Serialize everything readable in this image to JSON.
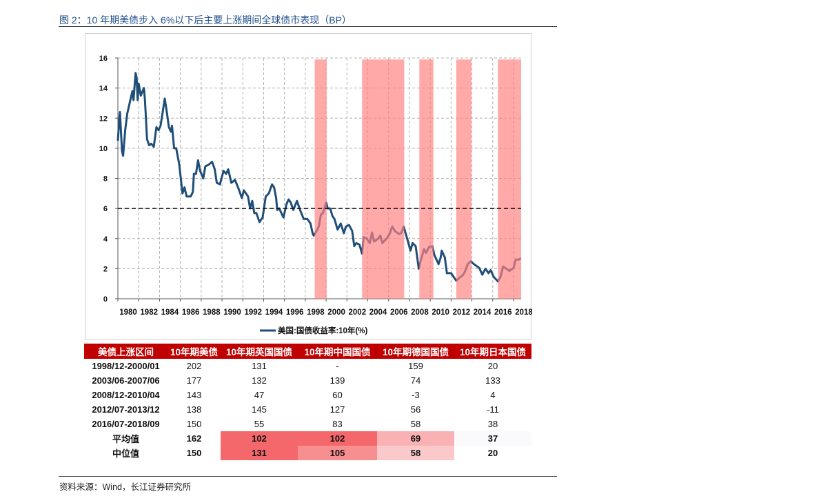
{
  "title": "图 2：10 年期美债步入 6%以下后主要上涨期间全球债市表现（BP）",
  "source": "资料来源：Wind，长江证券研究所",
  "chart_data": {
    "type": "line",
    "title": "",
    "xlabel": "",
    "ylabel": "",
    "xlim": [
      1980,
      2019
    ],
    "ylim": [
      0,
      16
    ],
    "yticks": [
      0,
      2,
      4,
      6,
      8,
      10,
      12,
      14,
      16
    ],
    "xticks": [
      1980,
      1982,
      1984,
      1986,
      1988,
      1990,
      1992,
      1994,
      1996,
      1998,
      2000,
      2002,
      2004,
      2006,
      2008,
      2010,
      2012,
      2014,
      2016,
      2018
    ],
    "grid": true,
    "legend": {
      "position": "bottom",
      "entries": [
        "美国:国债收益率:10年(%)"
      ]
    },
    "reference_line": {
      "y": 6,
      "style": "dashed"
    },
    "shaded_periods": [
      [
        1998.9,
        2000.05
      ],
      [
        2003.45,
        2007.5
      ],
      [
        2008.95,
        2010.3
      ],
      [
        2012.5,
        2013.95
      ],
      [
        2016.5,
        2018.9
      ]
    ],
    "series": [
      {
        "name": "美国:国债收益率:10年(%)",
        "color": "#1f4e79",
        "x": [
          1980.0,
          1980.15,
          1980.2,
          1980.4,
          1980.5,
          1980.7,
          1980.9,
          1981.1,
          1981.4,
          1981.5,
          1981.7,
          1981.8,
          1981.9,
          1982.0,
          1982.2,
          1982.5,
          1982.6,
          1982.8,
          1983.0,
          1983.2,
          1983.45,
          1983.7,
          1983.9,
          1984.1,
          1984.3,
          1984.5,
          1984.7,
          1984.9,
          1985.1,
          1985.2,
          1985.4,
          1985.6,
          1985.9,
          1986.2,
          1986.4,
          1986.6,
          1987.0,
          1987.2,
          1987.3,
          1987.5,
          1987.7,
          1987.9,
          1988.2,
          1988.4,
          1988.7,
          1989.05,
          1989.3,
          1989.5,
          1989.8,
          1990.15,
          1990.4,
          1990.6,
          1990.9,
          1991.25,
          1991.6,
          1991.9,
          1992.1,
          1992.5,
          1992.7,
          1992.9,
          1993.1,
          1993.3,
          1993.6,
          1993.9,
          1994.2,
          1994.5,
          1994.8,
          1995.0,
          1995.2,
          1995.3,
          1995.5,
          1995.9,
          1996.2,
          1996.4,
          1996.6,
          1996.85,
          1997.2,
          1997.5,
          1997.85,
          1998.2,
          1998.5,
          1998.7,
          1998.8,
          1999.0,
          1999.3,
          1999.5,
          1999.7,
          2000.0,
          2000.15,
          2000.4,
          2000.6,
          2000.8,
          2001.1,
          2001.4,
          2001.7,
          2001.9,
          2002.2,
          2002.5,
          2002.7,
          2002.9,
          2003.2,
          2003.45,
          2003.6,
          2003.9,
          2004.2,
          2004.4,
          2004.6,
          2005.0,
          2005.2,
          2005.4,
          2005.8,
          2006.1,
          2006.35,
          2006.6,
          2007.0,
          2007.2,
          2007.45,
          2007.7,
          2008.1,
          2008.3,
          2008.6,
          2008.9,
          2009.05,
          2009.4,
          2009.6,
          2009.9,
          2010.2,
          2010.4,
          2010.8,
          2011.0,
          2011.1,
          2011.4,
          2011.6,
          2012.0,
          2012.5,
          2012.8,
          2013.1,
          2013.3,
          2013.6,
          2013.9,
          2014.1,
          2014.4,
          2014.7,
          2015.0,
          2015.3,
          2015.6,
          2015.8,
          2016.1,
          2016.5,
          2016.75,
          2017.0,
          2017.3,
          2017.6,
          2018.0,
          2018.2,
          2018.5,
          2018.7
        ],
        "y": [
          10.5,
          12.1,
          12.4,
          9.8,
          9.5,
          11.2,
          12.3,
          12.9,
          13.8,
          13.2,
          15.0,
          14.7,
          13.2,
          14.3,
          13.5,
          14.0,
          13.2,
          10.6,
          10.2,
          10.3,
          10.1,
          11.4,
          11.2,
          11.5,
          12.4,
          13.3,
          12.4,
          11.4,
          11.1,
          11.5,
          10.0,
          10.0,
          8.9,
          7.0,
          7.4,
          6.8,
          6.8,
          7.1,
          8.3,
          8.3,
          9.2,
          8.5,
          8.0,
          8.8,
          8.9,
          9.1,
          8.6,
          7.7,
          7.6,
          8.5,
          8.3,
          8.6,
          7.7,
          7.9,
          7.3,
          6.7,
          7.2,
          6.8,
          6.0,
          6.5,
          5.7,
          5.7,
          5.1,
          5.4,
          6.8,
          7.0,
          7.6,
          7.4,
          6.7,
          5.9,
          6.0,
          5.4,
          6.3,
          6.6,
          6.4,
          5.9,
          6.5,
          5.9,
          5.3,
          5.3,
          5.0,
          4.35,
          4.2,
          4.4,
          4.8,
          5.6,
          5.7,
          6.4,
          6.0,
          6.0,
          5.5,
          5.3,
          4.6,
          5.0,
          4.35,
          4.8,
          4.9,
          4.5,
          3.5,
          3.7,
          3.6,
          3.0,
          4.1,
          4.0,
          3.7,
          4.4,
          3.8,
          4.0,
          4.2,
          3.7,
          4.0,
          4.3,
          4.8,
          4.5,
          4.3,
          4.35,
          4.8,
          4.2,
          3.2,
          3.7,
          3.5,
          2.0,
          2.45,
          3.3,
          3.05,
          3.45,
          3.5,
          2.9,
          2.3,
          2.75,
          3.2,
          2.75,
          1.7,
          1.7,
          1.2,
          1.4,
          1.55,
          1.75,
          2.3,
          2.5,
          2.35,
          2.2,
          2.05,
          1.6,
          2.0,
          1.7,
          1.9,
          1.45,
          1.15,
          1.45,
          2.15,
          2.0,
          1.85,
          2.05,
          2.6,
          2.6,
          2.7
        ]
      }
    ]
  },
  "table": {
    "headers": [
      "美债上涨区间",
      "10年期美债",
      "10年期英国国债",
      "10年期中国国债",
      "10年期德国国债",
      "10年期日本国债"
    ],
    "rows": [
      [
        "1998/12-2000/01",
        "202",
        "131",
        "-",
        "159",
        "20"
      ],
      [
        "2003/06-2007/06",
        "177",
        "132",
        "139",
        "74",
        "133"
      ],
      [
        "2008/12-2010/04",
        "143",
        "47",
        "60",
        "-3",
        "4"
      ],
      [
        "2012/07-2013/12",
        "138",
        "145",
        "127",
        "56",
        "-11"
      ],
      [
        "2016/07-2018/09",
        "150",
        "55",
        "83",
        "58",
        "38"
      ]
    ],
    "summary": [
      {
        "label": "平均值",
        "values": [
          "162",
          "102",
          "102",
          "69",
          "37"
        ],
        "colors": [
          "#ffffff",
          "#f4686c",
          "#f4686c",
          "#f9b1b3",
          "#fafafd"
        ]
      },
      {
        "label": "中位值",
        "values": [
          "150",
          "131",
          "105",
          "58",
          "20"
        ],
        "colors": [
          "#ffffff",
          "#f4686c",
          "#f78e90",
          "#fbc9ca",
          "#ffffff"
        ]
      }
    ]
  }
}
